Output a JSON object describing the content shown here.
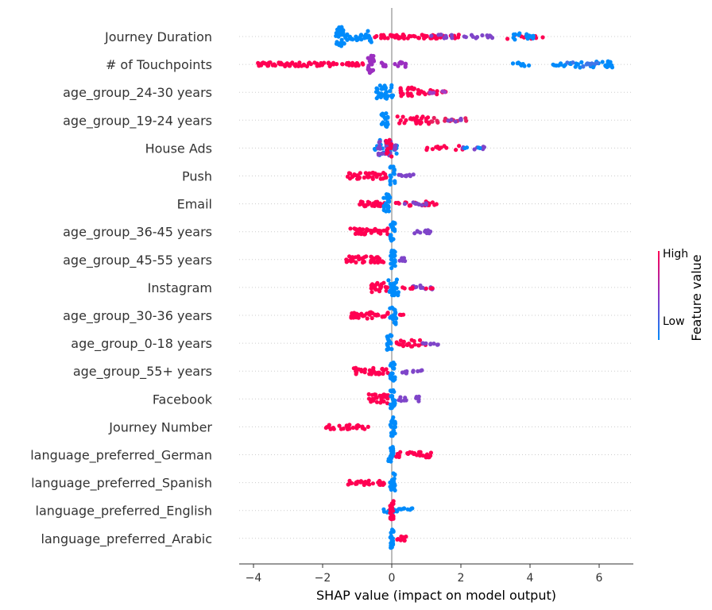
{
  "chart_data": {
    "type": "scatter",
    "subtype": "shap-beeswarm",
    "xlabel": "SHAP value (impact on model output)",
    "xticks": [
      -4,
      -2,
      0,
      2,
      4,
      6
    ],
    "xlim": [
      -4.4,
      7.0
    ],
    "colorbar": {
      "title": "Feature value",
      "high_label": "High",
      "low_label": "Low",
      "low_color": "#008bfb",
      "high_color": "#ff0052"
    },
    "features": [
      {
        "name": "Journey Duration",
        "segments": [
          {
            "from": -1.65,
            "to": -1.35,
            "color": "#008bfb",
            "count": 34,
            "spread": 12
          },
          {
            "from": -1.35,
            "to": -0.65,
            "color": "#008bfb",
            "count": 22,
            "spread": 5
          },
          {
            "from": -0.75,
            "to": -0.55,
            "color": "#008bfb",
            "count": 8,
            "spread": 7
          },
          {
            "from": -0.55,
            "to": 2.0,
            "color": "#ff0052",
            "count": 60,
            "spread": 2.5
          },
          {
            "from": 1.0,
            "to": 3.3,
            "color": "#7f45c9",
            "count": 20,
            "spread": 2.5
          },
          {
            "from": 3.3,
            "to": 4.4,
            "color": "#ff0052",
            "count": 10,
            "spread": 3
          },
          {
            "from": 3.5,
            "to": 4.1,
            "color": "#008bfb",
            "count": 16,
            "spread": 4
          }
        ]
      },
      {
        "name": "# of Touchpoints",
        "segments": [
          {
            "from": -3.9,
            "to": -1.6,
            "color": "#ff0052",
            "count": 60,
            "spread": 2.5
          },
          {
            "from": -1.6,
            "to": -0.8,
            "color": "#ff0052",
            "count": 18,
            "spread": 2
          },
          {
            "from": -0.7,
            "to": -0.5,
            "color": "#9b2fc0",
            "count": 22,
            "spread": 11
          },
          {
            "from": -0.45,
            "to": 0.5,
            "color": "#9b2fc0",
            "count": 14,
            "spread": 3
          },
          {
            "from": 3.5,
            "to": 4.0,
            "color": "#008bfb",
            "count": 8,
            "spread": 3
          },
          {
            "from": 4.5,
            "to": 6.4,
            "color": "#008bfb",
            "count": 40,
            "spread": 4
          },
          {
            "from": 5.0,
            "to": 6.0,
            "color": "#3f76e8",
            "count": 10,
            "spread": 3
          }
        ]
      },
      {
        "name": "age_group_24-30 years",
        "segments": [
          {
            "from": -0.45,
            "to": 0.05,
            "color": "#008bfb",
            "count": 30,
            "spread": 9
          },
          {
            "from": 0.25,
            "to": 0.7,
            "color": "#ff0052",
            "count": 22,
            "spread": 6
          },
          {
            "from": 0.7,
            "to": 1.6,
            "color": "#ff0052",
            "count": 18,
            "spread": 3
          },
          {
            "from": 1.0,
            "to": 1.55,
            "color": "#a23ec5",
            "count": 6,
            "spread": 2
          }
        ]
      },
      {
        "name": "age_group_19-24 years",
        "segments": [
          {
            "from": -0.3,
            "to": -0.1,
            "color": "#008bfb",
            "count": 20,
            "spread": 9
          },
          {
            "from": 0.15,
            "to": 1.1,
            "color": "#ff0052",
            "count": 26,
            "spread": 5
          },
          {
            "from": 1.1,
            "to": 2.2,
            "color": "#e8205f",
            "count": 16,
            "spread": 3
          },
          {
            "from": 1.6,
            "to": 2.2,
            "color": "#7f45c9",
            "count": 6,
            "spread": 2
          }
        ]
      },
      {
        "name": "House Ads",
        "segments": [
          {
            "from": -0.5,
            "to": 0.2,
            "color": "#008bfb",
            "count": 24,
            "spread": 10
          },
          {
            "from": -0.4,
            "to": 0.15,
            "color": "#7f45c9",
            "count": 22,
            "spread": 10
          },
          {
            "from": -0.2,
            "to": 0.0,
            "color": "#ff0052",
            "count": 14,
            "spread": 12
          },
          {
            "from": 0.8,
            "to": 2.1,
            "color": "#ff0052",
            "count": 14,
            "spread": 3
          },
          {
            "from": 2.0,
            "to": 2.7,
            "color": "#7f45c9",
            "count": 8,
            "spread": 2
          },
          {
            "from": 2.1,
            "to": 2.6,
            "color": "#008bfb",
            "count": 4,
            "spread": 2
          }
        ]
      },
      {
        "name": "Push",
        "segments": [
          {
            "from": -1.3,
            "to": -0.1,
            "color": "#ff0052",
            "count": 40,
            "spread": 4
          },
          {
            "from": -0.05,
            "to": 0.1,
            "color": "#008bfb",
            "count": 20,
            "spread": 12
          },
          {
            "from": 0.2,
            "to": 0.7,
            "color": "#7f45c9",
            "count": 10,
            "spread": 2
          }
        ]
      },
      {
        "name": "Email",
        "segments": [
          {
            "from": -1.0,
            "to": -0.2,
            "color": "#ff0052",
            "count": 30,
            "spread": 3
          },
          {
            "from": -0.25,
            "to": -0.05,
            "color": "#008bfb",
            "count": 24,
            "spread": 12
          },
          {
            "from": 0.1,
            "to": 1.3,
            "color": "#ff0052",
            "count": 22,
            "spread": 3
          },
          {
            "from": 0.3,
            "to": 1.0,
            "color": "#7f45c9",
            "count": 10,
            "spread": 2
          }
        ]
      },
      {
        "name": "age_group_36-45 years",
        "segments": [
          {
            "from": -1.2,
            "to": -0.1,
            "color": "#ff0052",
            "count": 44,
            "spread": 4
          },
          {
            "from": -0.05,
            "to": 0.1,
            "color": "#008bfb",
            "count": 20,
            "spread": 12
          },
          {
            "from": 0.55,
            "to": 1.2,
            "color": "#7f45c9",
            "count": 10,
            "spread": 2
          }
        ]
      },
      {
        "name": "age_group_45-55 years",
        "segments": [
          {
            "from": -1.35,
            "to": -0.2,
            "color": "#ff0052",
            "count": 40,
            "spread": 4
          },
          {
            "from": -0.05,
            "to": 0.1,
            "color": "#008bfb",
            "count": 20,
            "spread": 12
          },
          {
            "from": 0.2,
            "to": 0.45,
            "color": "#7f45c9",
            "count": 6,
            "spread": 2
          }
        ]
      },
      {
        "name": "Instagram",
        "segments": [
          {
            "from": -0.6,
            "to": -0.1,
            "color": "#ff0052",
            "count": 24,
            "spread": 6
          },
          {
            "from": -0.1,
            "to": 0.2,
            "color": "#008bfb",
            "count": 24,
            "spread": 11
          },
          {
            "from": 0.5,
            "to": 1.25,
            "color": "#7f45c9",
            "count": 12,
            "spread": 3
          },
          {
            "from": 0.3,
            "to": 1.2,
            "color": "#ff0052",
            "count": 8,
            "spread": 2
          }
        ]
      },
      {
        "name": "age_group_30-36 years",
        "segments": [
          {
            "from": -1.2,
            "to": -0.1,
            "color": "#ff0052",
            "count": 44,
            "spread": 4
          },
          {
            "from": -0.05,
            "to": 0.15,
            "color": "#008bfb",
            "count": 20,
            "spread": 12
          },
          {
            "from": 0.2,
            "to": 0.35,
            "color": "#ff0052",
            "count": 3,
            "spread": 1
          }
        ]
      },
      {
        "name": "age_group_0-18 years",
        "segments": [
          {
            "from": -0.15,
            "to": 0.0,
            "color": "#008bfb",
            "count": 20,
            "spread": 11
          },
          {
            "from": 0.1,
            "to": 1.0,
            "color": "#ff0052",
            "count": 22,
            "spread": 4
          },
          {
            "from": 0.9,
            "to": 1.45,
            "color": "#7f45c9",
            "count": 8,
            "spread": 2
          }
        ]
      },
      {
        "name": "age_group_55+ years",
        "segments": [
          {
            "from": -1.1,
            "to": -0.1,
            "color": "#ff0052",
            "count": 30,
            "spread": 4
          },
          {
            "from": -0.05,
            "to": 0.1,
            "color": "#008bfb",
            "count": 20,
            "spread": 12
          },
          {
            "from": 0.3,
            "to": 0.9,
            "color": "#7f45c9",
            "count": 10,
            "spread": 3
          }
        ]
      },
      {
        "name": "Facebook",
        "segments": [
          {
            "from": -0.7,
            "to": -0.1,
            "color": "#ff0052",
            "count": 28,
            "spread": 6
          },
          {
            "from": -0.05,
            "to": 0.1,
            "color": "#008bfb",
            "count": 20,
            "spread": 12
          },
          {
            "from": 0.2,
            "to": 0.8,
            "color": "#7f45c9",
            "count": 12,
            "spread": 3
          }
        ]
      },
      {
        "name": "Journey Number",
        "segments": [
          {
            "from": -2.0,
            "to": -0.6,
            "color": "#ff0052",
            "count": 28,
            "spread": 3
          },
          {
            "from": -0.05,
            "to": 0.1,
            "color": "#008bfb",
            "count": 24,
            "spread": 12
          }
        ]
      },
      {
        "name": "language_preferred_German",
        "segments": [
          {
            "from": -0.1,
            "to": 0.05,
            "color": "#008bfb",
            "count": 20,
            "spread": 11
          },
          {
            "from": 0.1,
            "to": 1.2,
            "color": "#ff0052",
            "count": 30,
            "spread": 4
          }
        ]
      },
      {
        "name": "language_preferred_Spanish",
        "segments": [
          {
            "from": -1.3,
            "to": -0.2,
            "color": "#ff0052",
            "count": 30,
            "spread": 3
          },
          {
            "from": -0.05,
            "to": 0.1,
            "color": "#008bfb",
            "count": 22,
            "spread": 12
          }
        ]
      },
      {
        "name": "language_preferred_English",
        "segments": [
          {
            "from": -0.25,
            "to": 0.6,
            "color": "#008bfb",
            "count": 22,
            "spread": 3
          },
          {
            "from": -0.05,
            "to": 0.05,
            "color": "#ff0052",
            "count": 22,
            "spread": 12
          }
        ]
      },
      {
        "name": "language_preferred_Arabic",
        "segments": [
          {
            "from": -0.05,
            "to": 0.05,
            "color": "#008bfb",
            "count": 22,
            "spread": 12
          },
          {
            "from": 0.1,
            "to": 0.5,
            "color": "#ff0052",
            "count": 12,
            "spread": 3
          }
        ]
      }
    ]
  }
}
